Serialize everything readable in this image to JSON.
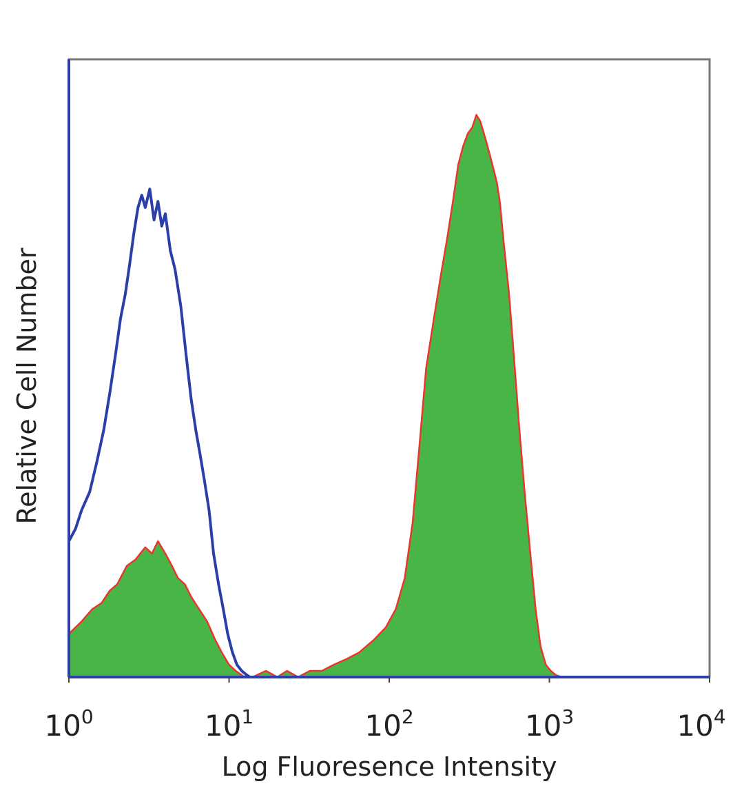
{
  "chart_data": {
    "type": "area",
    "xlabel": "Log Fluoresence Intensity",
    "ylabel": "Relative Cell Number",
    "xscale": "log",
    "xlim": [
      1,
      10000
    ],
    "ylim": [
      0,
      100
    ],
    "x_ticks": [
      {
        "base": "10",
        "exp": "0",
        "value": 1
      },
      {
        "base": "10",
        "exp": "1",
        "value": 10
      },
      {
        "base": "10",
        "exp": "2",
        "value": 100
      },
      {
        "base": "10",
        "exp": "3",
        "value": 1000
      },
      {
        "base": "10",
        "exp": "4",
        "value": 10000
      }
    ],
    "grid": false,
    "legend": "none",
    "series": [
      {
        "style": "outline",
        "color": "#2b3fa8",
        "x": [
          1,
          1.1,
          1.2,
          1.35,
          1.5,
          1.65,
          1.8,
          1.95,
          2.1,
          2.25,
          2.4,
          2.55,
          2.7,
          2.85,
          3.0,
          3.2,
          3.4,
          3.6,
          3.8,
          4.0,
          4.3,
          4.6,
          5.0,
          5.4,
          5.8,
          6.2,
          6.6,
          7.0,
          7.5,
          8.0,
          8.6,
          9.2,
          9.8,
          10.5,
          11.2,
          12.0,
          12.8,
          13.5
        ],
        "y": [
          22,
          24,
          27,
          30,
          35,
          40,
          46,
          52,
          58,
          62,
          67,
          72,
          76,
          78,
          76,
          79,
          74,
          77,
          73,
          75,
          69,
          66,
          60,
          52,
          45,
          40,
          36,
          32,
          27,
          20,
          15,
          11,
          7,
          4,
          2,
          1,
          0.4,
          0
        ]
      },
      {
        "style": "filled",
        "fill": "#4ab547",
        "stroke": "#e8362d",
        "x": [
          1,
          1.2,
          1.4,
          1.6,
          1.8,
          2.0,
          2.3,
          2.6,
          3.0,
          3.3,
          3.6,
          4.0,
          4.4,
          4.8,
          5.3,
          5.8,
          6.5,
          7.3,
          8.2,
          9.0,
          10.0,
          11.0,
          12.5,
          14,
          17,
          20,
          23,
          27,
          32,
          38,
          45,
          55,
          65,
          80,
          95,
          110,
          125,
          140,
          155,
          170,
          190,
          210,
          230,
          250,
          270,
          290,
          310,
          330,
          350,
          370,
          390,
          410,
          430,
          450,
          470,
          490,
          520,
          560,
          600,
          650,
          700,
          760,
          820,
          880,
          950,
          1020,
          1100,
          1200
        ],
        "y": [
          7,
          9,
          11,
          12,
          14,
          15,
          18,
          19,
          21,
          20,
          22,
          20,
          18,
          16,
          15,
          13,
          11,
          9,
          6,
          4,
          2,
          1,
          0,
          0,
          1,
          0,
          1,
          0,
          1,
          1,
          2,
          3,
          4,
          6,
          8,
          11,
          16,
          25,
          38,
          50,
          58,
          65,
          71,
          77,
          83,
          86,
          88,
          89,
          91,
          90,
          88,
          86,
          84,
          82,
          80,
          77,
          70,
          62,
          52,
          40,
          30,
          20,
          11,
          5,
          2,
          1,
          0.3,
          0
        ]
      }
    ]
  }
}
